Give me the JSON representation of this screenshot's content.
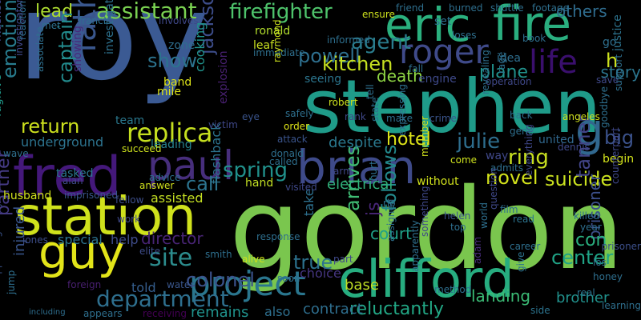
{
  "words": [
    {
      "text": "roy",
      "color": "#3b5a93"
    },
    {
      "text": "gordon",
      "color": "#7ac64e"
    },
    {
      "text": "stephen",
      "color": "#1f9b89"
    },
    {
      "text": "station",
      "color": "#cfe11c"
    },
    {
      "text": "clifford",
      "color": "#27ad80"
    },
    {
      "text": "fire",
      "color": "#2aae7f"
    },
    {
      "text": "eric",
      "color": "#2ab07e"
    },
    {
      "text": "fred",
      "color": "#44187a"
    },
    {
      "text": "guy",
      "color": "#e2e419"
    },
    {
      "text": "brian",
      "color": "#3e4a89"
    },
    {
      "text": "paul",
      "color": "#472e7c"
    },
    {
      "text": "project",
      "color": "#2a768e"
    },
    {
      "text": "roger",
      "color": "#3f4a89"
    },
    {
      "text": "father",
      "color": "#39568c"
    },
    {
      "text": "life",
      "color": "#3a0f6d"
    },
    {
      "text": "replica",
      "color": "#c5df1f"
    },
    {
      "text": "firefighter",
      "color": "#4ec36b"
    },
    {
      "text": "department",
      "color": "#2e6f8e"
    },
    {
      "text": "site",
      "color": "#2c8c8d"
    },
    {
      "text": "g",
      "color": "#31688e"
    },
    {
      "text": "assistant",
      "color": "#7ad151"
    },
    {
      "text": "agent",
      "color": "#2a7d8e"
    },
    {
      "text": "powell",
      "color": "#2e6f8e"
    },
    {
      "text": "kitchen",
      "color": "#c6e021"
    },
    {
      "text": "jackson",
      "color": "#3d4d8a"
    },
    {
      "text": "show",
      "color": "#2c738e"
    },
    {
      "text": "lead",
      "color": "#addc30"
    },
    {
      "text": "captain",
      "color": "#228b8d"
    },
    {
      "text": "emotional",
      "color": "#287c8e"
    },
    {
      "text": "spring",
      "color": "#21918c"
    },
    {
      "text": "call",
      "color": "#2c738e"
    },
    {
      "text": "return",
      "color": "#cde11d"
    },
    {
      "text": "colonel",
      "color": "#3b528b"
    },
    {
      "text": "ring",
      "color": "#c8e020"
    },
    {
      "text": "hotel",
      "color": "#dde318"
    },
    {
      "text": "novel",
      "color": "#d2e21b"
    },
    {
      "text": "suicide",
      "color": "#cae11f"
    },
    {
      "text": "julie",
      "color": "#2e6e8e"
    },
    {
      "text": "big",
      "color": "#3b528b"
    },
    {
      "text": "h",
      "color": "#cbe11e"
    },
    {
      "text": "arrives",
      "color": "#3fbc73"
    },
    {
      "text": "follows",
      "color": "#238a8d"
    },
    {
      "text": "js",
      "color": "#482677"
    },
    {
      "text": "true",
      "color": "#2c728e"
    },
    {
      "text": "center",
      "color": "#20a386"
    },
    {
      "text": "tanner",
      "color": "#414487"
    },
    {
      "text": "plane",
      "color": "#21918c"
    },
    {
      "text": "death",
      "color": "#8fd744"
    },
    {
      "text": "others",
      "color": "#2f6c8e"
    },
    {
      "text": "story",
      "color": "#2b758e"
    },
    {
      "text": "partner",
      "color": "#443a83"
    },
    {
      "text": "injured",
      "color": "#39558c"
    },
    {
      "text": "husband",
      "color": "#d0e11c"
    },
    {
      "text": "director",
      "color": "#482475"
    },
    {
      "text": "remains",
      "color": "#20928c"
    },
    {
      "text": "reluctantly",
      "color": "#22a785"
    },
    {
      "text": "landing",
      "color": "#3bbb75"
    },
    {
      "text": "brother",
      "color": "#21918c"
    },
    {
      "text": "prisoner",
      "color": "#3c4f8a"
    },
    {
      "text": "contract",
      "color": "#2e6e8e"
    },
    {
      "text": "base",
      "color": "#c0df25"
    },
    {
      "text": "court",
      "color": "#1fa188"
    },
    {
      "text": "electrical",
      "color": "#30b07a"
    },
    {
      "text": "despite",
      "color": "#2a788e"
    },
    {
      "text": "underground",
      "color": "#2c738e"
    },
    {
      "text": "war",
      "color": "#3dbc74"
    },
    {
      "text": "con",
      "color": "#2ab07f"
    },
    {
      "text": "assisted",
      "color": "#c4df22"
    },
    {
      "text": "special",
      "color": "#2c738e"
    },
    {
      "text": "help",
      "color": "#3e4c8a"
    },
    {
      "text": "told",
      "color": "#355e8d"
    },
    {
      "text": "choice",
      "color": "#453581"
    },
    {
      "text": "also",
      "color": "#2e6f8e"
    },
    {
      "text": "hand",
      "color": "#c2df23"
    },
    {
      "text": "tasked",
      "color": "#2b758e"
    },
    {
      "text": "leading",
      "color": "#26818e"
    },
    {
      "text": "team",
      "color": "#2a788e"
    },
    {
      "text": "band",
      "color": "#dde318"
    },
    {
      "text": "mile",
      "color": "#dde318"
    },
    {
      "text": "zone",
      "color": "#2e6e8e"
    },
    {
      "text": "cooking",
      "color": "#20938c"
    },
    {
      "text": "leaf",
      "color": "#c8e020"
    },
    {
      "text": "ronald",
      "color": "#b2dd2c"
    },
    {
      "text": "set",
      "color": "#2d708e"
    },
    {
      "text": "seeing",
      "color": "#2b758e"
    },
    {
      "text": "engine",
      "color": "#3e4989"
    },
    {
      "text": "idea",
      "color": "#2e6e8e"
    },
    {
      "text": "way",
      "color": "#3f4788"
    },
    {
      "text": "united",
      "color": "#31688e"
    },
    {
      "text": "begin",
      "color": "#d2e21b"
    },
    {
      "text": "justice",
      "color": "#2c738e"
    },
    {
      "text": "go",
      "color": "#2e6f8e"
    },
    {
      "text": "fugitive",
      "color": "#1f9a8a"
    },
    {
      "text": "masked",
      "color": "#3f4889"
    },
    {
      "text": "showing",
      "color": "#482979"
    },
    {
      "text": "investigation",
      "color": "#2d718e"
    },
    {
      "text": "flashback",
      "color": "#2c738e"
    },
    {
      "text": "explosion",
      "color": "#482071"
    },
    {
      "text": "take",
      "color": "#2d708e"
    },
    {
      "text": "without",
      "color": "#d0e11c"
    },
    {
      "text": "jones",
      "color": "#3d4e8a"
    },
    {
      "text": "foreign",
      "color": "#481f70"
    },
    {
      "text": "receiving",
      "color": "#440154"
    },
    {
      "text": "appears",
      "color": "#2e6f8e"
    },
    {
      "text": "including",
      "color": "#2e6e8e"
    },
    {
      "text": "community",
      "color": "#3c508b"
    },
    {
      "text": "appearing",
      "color": "#3a548c"
    },
    {
      "text": "real",
      "color": "#2c738e"
    },
    {
      "text": "side",
      "color": "#2c738e"
    },
    {
      "text": "film",
      "color": "#2e6f8e"
    },
    {
      "text": "read",
      "color": "#2c738e"
    },
    {
      "text": "killed",
      "color": "#2e6e8e"
    },
    {
      "text": "los",
      "color": "#2e6f8e"
    },
    {
      "text": "everything",
      "color": "#3f4889"
    },
    {
      "text": "give",
      "color": "#2c738e"
    },
    {
      "text": "adam",
      "color": "#472d7b"
    },
    {
      "text": "answer",
      "color": "#d0e11c"
    },
    {
      "text": "prisoner",
      "color": "#3c4f8a"
    },
    {
      "text": "imprisoned",
      "color": "#39568c"
    },
    {
      "text": "robert",
      "color": "#cde11d"
    },
    {
      "text": "attack",
      "color": "#3a548c"
    },
    {
      "text": "donald",
      "color": "#2e6f8e"
    },
    {
      "text": "called",
      "color": "#2e6f8e"
    },
    {
      "text": "order",
      "color": "#dde318"
    },
    {
      "text": "safely",
      "color": "#2e6f8e"
    },
    {
      "text": "victim",
      "color": "#3f4889"
    },
    {
      "text": "succeed",
      "color": "#cde11d"
    },
    {
      "text": "work",
      "color": "#3f4889"
    },
    {
      "text": "fellow",
      "color": "#3d4e8a"
    },
    {
      "text": "advice",
      "color": "#2d708e"
    },
    {
      "text": "alive",
      "color": "#cde11d"
    },
    {
      "text": "smith",
      "color": "#2e6f8e"
    },
    {
      "text": "elite",
      "color": "#3e4c8a"
    },
    {
      "text": "response",
      "color": "#2e6f8e"
    },
    {
      "text": "water",
      "color": "#39568c"
    },
    {
      "text": "method",
      "color": "#2e6f8e"
    },
    {
      "text": "visited",
      "color": "#3f4889"
    },
    {
      "text": "hurt",
      "color": "#2e6f8e"
    },
    {
      "text": "member",
      "color": "#d0e11c"
    },
    {
      "text": "arm",
      "color": "#3f4889"
    },
    {
      "text": "helen",
      "color": "#3a548c"
    },
    {
      "text": "top",
      "color": "#2e6f8e"
    },
    {
      "text": "career",
      "color": "#2e6f8e"
    },
    {
      "text": "year",
      "color": "#2e6f8e"
    },
    {
      "text": "gene",
      "color": "#2e6f8e"
    },
    {
      "text": "dennis",
      "color": "#3f4889"
    },
    {
      "text": "angeles",
      "color": "#d0e11c"
    },
    {
      "text": "goodbye",
      "color": "#2e6f8e"
    },
    {
      "text": "crime",
      "color": "#3a548c"
    },
    {
      "text": "make",
      "color": "#2e6f8e"
    },
    {
      "text": "state",
      "color": "#2e6f8e"
    },
    {
      "text": "tell",
      "color": "#2e6f8e"
    },
    {
      "text": "rank",
      "color": "#3f4889"
    },
    {
      "text": "back",
      "color": "#2e6f8e"
    },
    {
      "text": "rage",
      "color": "#2e6f8e"
    },
    {
      "text": "save",
      "color": "#3f4889"
    },
    {
      "text": "support",
      "color": "#2e6f8e"
    },
    {
      "text": "book",
      "color": "#2e6f8e"
    },
    {
      "text": "operation",
      "color": "#3f4889"
    },
    {
      "text": "loses",
      "color": "#2e6f8e"
    },
    {
      "text": "informed",
      "color": "#2e6f8e"
    },
    {
      "text": "immediate",
      "color": "#2e6f8e"
    },
    {
      "text": "raymond",
      "color": "#cde11d"
    },
    {
      "text": "fall",
      "color": "#2e6f8e"
    },
    {
      "text": "eye",
      "color": "#3a548c"
    },
    {
      "text": "burned",
      "color": "#2e6f8e"
    },
    {
      "text": "shuttle",
      "color": "#2e6f8e"
    },
    {
      "text": "footage",
      "color": "#2e6f8e"
    },
    {
      "text": "friend",
      "color": "#2e6f8e"
    },
    {
      "text": "ensure",
      "color": "#cde11d"
    },
    {
      "text": "involves",
      "color": "#3f4889"
    },
    {
      "text": "francis",
      "color": "#2e6f8e"
    },
    {
      "text": "met",
      "color": "#2e6f8e"
    },
    {
      "text": "reaction",
      "color": "#2e6f8e"
    },
    {
      "text": "investigator",
      "color": "#3f4889"
    },
    {
      "text": "associate",
      "color": "#2e6f8e"
    },
    {
      "text": "wave",
      "color": "#2e6f8e"
    },
    {
      "text": "jump",
      "color": "#2e6f8e"
    },
    {
      "text": "alan",
      "color": "#3f4889"
    },
    {
      "text": "come",
      "color": "#cde11d"
    },
    {
      "text": "admits",
      "color": "#2e6f8e"
    },
    {
      "text": "part",
      "color": "#3f4889"
    },
    {
      "text": "soon",
      "color": "#2e6f8e"
    },
    {
      "text": "rio",
      "color": "#2e6f8e"
    },
    {
      "text": "world",
      "color": "#2e6f8e"
    },
    {
      "text": "question",
      "color": "#3f4889"
    },
    {
      "text": "honey",
      "color": "#2e6f8e"
    },
    {
      "text": "learning",
      "color": "#2e6f8e"
    },
    {
      "text": "counterpart",
      "color": "#3f4889"
    },
    {
      "text": "expressing",
      "color": "#2e6f8e"
    },
    {
      "text": "revealing",
      "color": "#2e6f8e"
    },
    {
      "text": "assigned",
      "color": "#2e6f8e"
    },
    {
      "text": "something",
      "color": "#3f4889"
    },
    {
      "text": "apparently",
      "color": "#2e6f8e"
    }
  ]
}
